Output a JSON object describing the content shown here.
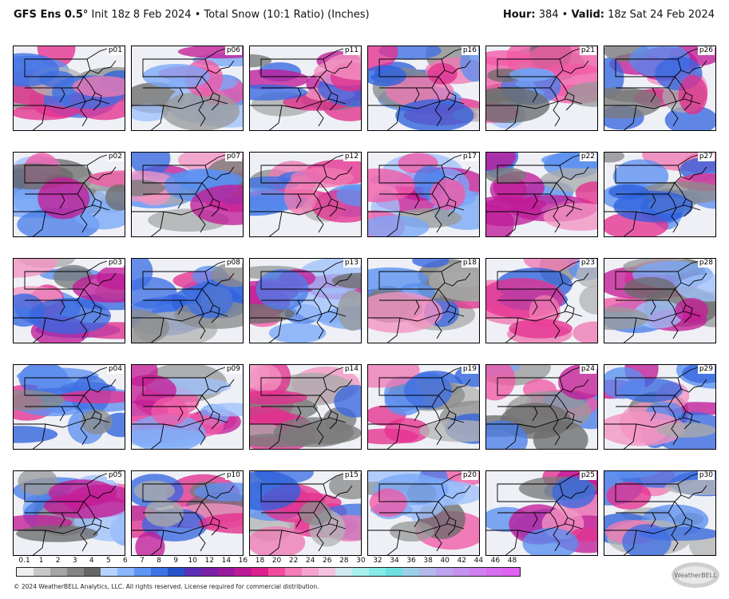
{
  "header": {
    "model": "GFS Ens 0.5",
    "degree": "°",
    "init": " Init 18z 8 Feb 2024",
    "sep": " • ",
    "product": "Total Snow (10:1 Ratio) (Inches)",
    "hour_label": "Hour:",
    "hour_value": " 384",
    "valid_label": "Valid:",
    "valid_value": " 18z Sat 24 Feb 2024"
  },
  "panels": [
    [
      "p01",
      "p06",
      "p11",
      "p16",
      "p21",
      "p26"
    ],
    [
      "p02",
      "p07",
      "p12",
      "p17",
      "p22",
      "p27"
    ],
    [
      "p03",
      "p08",
      "p13",
      "p18",
      "p23",
      "p28"
    ],
    [
      "p04",
      "p09",
      "p14",
      "p19",
      "p24",
      "p29"
    ],
    [
      "p05",
      "p10",
      "p15",
      "p20",
      "p25",
      "p30"
    ]
  ],
  "colorbar": {
    "ticks": [
      "0.1",
      "1",
      "2",
      "3",
      "4",
      "5",
      "6",
      "7",
      "8",
      "9",
      "10",
      "12",
      "14",
      "16",
      "18",
      "20",
      "22",
      "24",
      "26",
      "28",
      "30",
      "32",
      "34",
      "36",
      "38",
      "40",
      "42",
      "44",
      "46",
      "48"
    ],
    "colors": [
      "#eeeeee",
      "#c8c8c8",
      "#a6a6a6",
      "#858585",
      "#666666",
      "#b6d3ff",
      "#8cb5ff",
      "#5f95f4",
      "#3d74e6",
      "#2553cc",
      "#5b2fb8",
      "#7a1fa8",
      "#9a1a9e",
      "#bd1a98",
      "#de1f8e",
      "#f24b9e",
      "#f57cba",
      "#f6a3cf",
      "#f3c2dd",
      "#d0e8f0",
      "#a7f0ef",
      "#84ebe8",
      "#6ee0e0",
      "#9dd0e8",
      "#b3b9ec",
      "#bda4ee",
      "#c791f0",
      "#d07ff1",
      "#d76ff2",
      "#df62f3"
    ]
  },
  "footer": "© 2024 WeatherBELL Analytics, LLC. All rights reserved. License required for commercial distribution.",
  "logo_text": "WeatherBELL"
}
